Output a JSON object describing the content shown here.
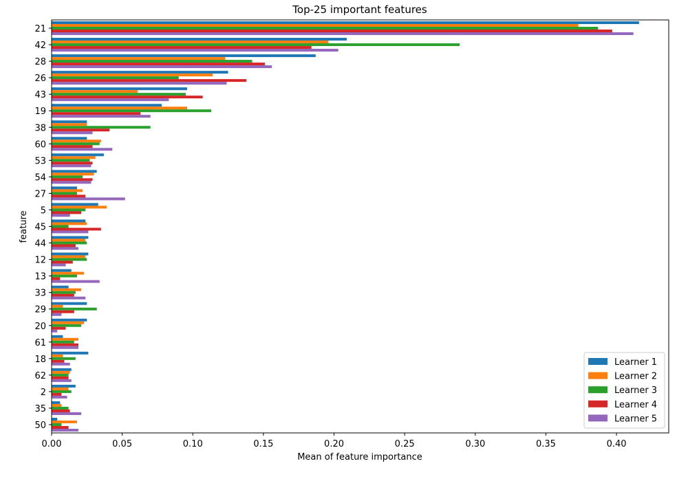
{
  "chart_data": {
    "type": "bar",
    "orientation": "horizontal",
    "title": "Top-25 important features",
    "xlabel": "Mean of feature importance",
    "ylabel": "feature",
    "xlim": [
      0,
      0.437
    ],
    "xticks": [
      "0.00",
      "0.05",
      "0.10",
      "0.15",
      "0.20",
      "0.25",
      "0.30",
      "0.35",
      "0.40"
    ],
    "xtick_values": [
      0,
      0.05,
      0.1,
      0.15,
      0.2,
      0.25,
      0.3,
      0.35,
      0.4
    ],
    "grid": false,
    "legend_position": "bottom-right",
    "categories": [
      "21",
      "42",
      "28",
      "26",
      "43",
      "19",
      "38",
      "60",
      "53",
      "54",
      "27",
      "5",
      "45",
      "44",
      "12",
      "13",
      "33",
      "29",
      "20",
      "61",
      "18",
      "62",
      "2",
      "35",
      "50"
    ],
    "series": [
      {
        "name": "Learner 1",
        "color": "#1f77b4",
        "values": [
          0.416,
          0.209,
          0.187,
          0.125,
          0.096,
          0.078,
          0.025,
          0.025,
          0.037,
          0.032,
          0.018,
          0.033,
          0.024,
          0.026,
          0.026,
          0.014,
          0.012,
          0.025,
          0.025,
          0.008,
          0.026,
          0.014,
          0.017,
          0.006,
          0.004
        ]
      },
      {
        "name": "Learner 2",
        "color": "#ff7f0e",
        "values": [
          0.373,
          0.196,
          0.123,
          0.114,
          0.061,
          0.096,
          0.025,
          0.035,
          0.031,
          0.03,
          0.022,
          0.039,
          0.025,
          0.024,
          0.024,
          0.023,
          0.021,
          0.008,
          0.023,
          0.019,
          0.008,
          0.013,
          0.012,
          0.007,
          0.018
        ]
      },
      {
        "name": "Learner 3",
        "color": "#2ca02c",
        "values": [
          0.387,
          0.289,
          0.142,
          0.09,
          0.095,
          0.113,
          0.07,
          0.034,
          0.027,
          0.022,
          0.018,
          0.024,
          0.012,
          0.025,
          0.025,
          0.018,
          0.017,
          0.032,
          0.021,
          0.016,
          0.017,
          0.012,
          0.014,
          0.012,
          0.007
        ]
      },
      {
        "name": "Learner 4",
        "color": "#d62728",
        "values": [
          0.397,
          0.184,
          0.151,
          0.138,
          0.107,
          0.063,
          0.041,
          0.029,
          0.029,
          0.029,
          0.024,
          0.021,
          0.035,
          0.017,
          0.015,
          0.006,
          0.016,
          0.016,
          0.01,
          0.019,
          0.009,
          0.012,
          0.007,
          0.013,
          0.012
        ]
      },
      {
        "name": "Learner 5",
        "color": "#9467bd",
        "values": [
          0.412,
          0.203,
          0.156,
          0.124,
          0.083,
          0.07,
          0.029,
          0.043,
          0.028,
          0.028,
          0.052,
          0.013,
          0.026,
          0.019,
          0.01,
          0.034,
          0.024,
          0.007,
          0.004,
          0.019,
          0.013,
          0.014,
          0.011,
          0.021,
          0.019
        ]
      }
    ]
  }
}
